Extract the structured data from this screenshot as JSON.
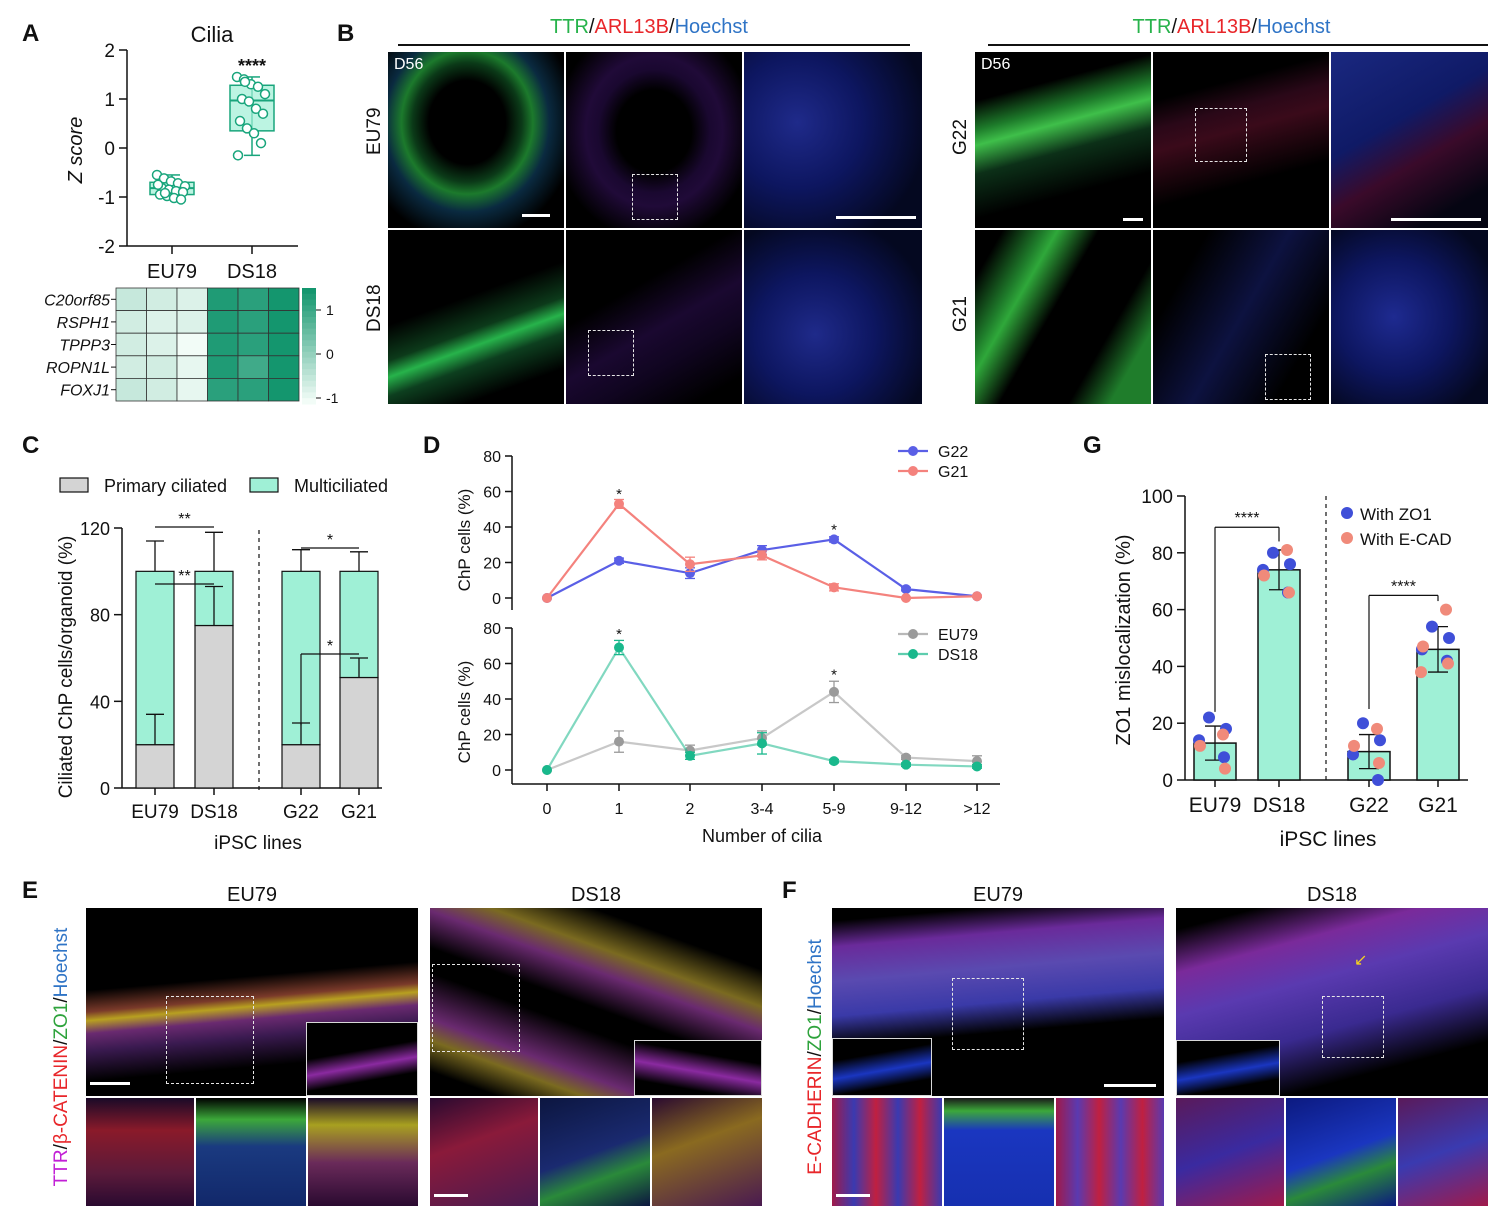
{
  "panels": {
    "A": "A",
    "B": "B",
    "C": "C",
    "D": "D",
    "E": "E",
    "F": "F",
    "G": "G"
  },
  "colors": {
    "mint": "#9ff0d6",
    "mint_stroke": "#19a57c",
    "green_dark": "#14996f",
    "grey_bar": "#d4d4d4",
    "blue_line": "#5a5fe6",
    "salmon_line": "#f4827d",
    "grey_line": "#9a9a9a",
    "green_line": "#19b88c",
    "ttr": "#27b34b",
    "arl13b": "#e8262a",
    "hoechst": "#2f74c6",
    "magenta": "#c21fd6",
    "zo1_green": "#2ea33c"
  },
  "panelA": {
    "title": "Cilia",
    "ylabel": "Z score",
    "categories": [
      "EU79",
      "DS18"
    ],
    "yticks": [
      "2",
      "1",
      "0",
      "-1",
      "-2"
    ],
    "signif": "****",
    "heatmap_rows": [
      "C20orf85",
      "RSPH1",
      "TPPP3",
      "ROPN1L",
      "FOXJ1"
    ],
    "colorbar_ticks": [
      "1",
      "0",
      "-1"
    ]
  },
  "panelB": {
    "title_left": {
      "a": "TTR",
      "s1": "/",
      "b": "ARL13B",
      "s2": "/",
      "c": "Hoechst"
    },
    "title_right": {
      "a": "TTR",
      "s1": "/",
      "b": "ARL13B",
      "s2": "/",
      "c": "Hoechst"
    },
    "day": "D56",
    "rows_left": [
      "EU79",
      "DS18"
    ],
    "rows_right": [
      "G22",
      "G21"
    ]
  },
  "panelC": {
    "ylabel": "Ciliated ChP cells/organoid (%)",
    "xlabel": "iPSC lines",
    "legend": [
      "Primary ciliated",
      "Multiciliated"
    ],
    "yticks": [
      "0",
      "40",
      "80",
      "120"
    ],
    "signif": [
      "**",
      "**",
      "*",
      "*"
    ]
  },
  "panelD": {
    "ylabel": "ChP cells (%)",
    "xlabel": "Number of cilia",
    "yticks": [
      "0",
      "20",
      "40",
      "60",
      "80"
    ],
    "signif": "*"
  },
  "panelE": {
    "side_label": {
      "a": "TTR",
      "s1": "/",
      "b": "β-CATENIN",
      "s2": "/",
      "c": "ZO1",
      "s3": "/",
      "d": "Hoechst"
    },
    "titles": [
      "EU79",
      "DS18"
    ]
  },
  "panelF": {
    "side_label": {
      "a": "E-CADHERIN",
      "s1": "/",
      "b": "ZO1",
      "s2": "/",
      "c": "Hoechst"
    },
    "titles": [
      "EU79",
      "DS18"
    ]
  },
  "panelG": {
    "ylabel": "ZO1 mislocalization (%)",
    "xlabel": "iPSC lines",
    "yticks": [
      "0",
      "20",
      "40",
      "60",
      "80",
      "100"
    ],
    "legend": [
      "With ZO1",
      "With E-CAD"
    ],
    "signif": "****"
  },
  "chart_data": [
    {
      "type": "scatter",
      "panel": "A",
      "title": "Cilia",
      "ylabel": "Z score",
      "categories": [
        "EU79",
        "DS18"
      ],
      "ylim": [
        -2,
        2
      ],
      "series": [
        {
          "name": "EU79",
          "values": [
            -0.55,
            -0.62,
            -0.68,
            -0.72,
            -0.78,
            -0.82,
            -0.85,
            -0.88,
            -0.9,
            -0.95,
            -0.98,
            -1.02,
            -1.05,
            -0.75,
            -0.92
          ]
        },
        {
          "name": "DS18",
          "values": [
            1.45,
            1.4,
            1.3,
            1.25,
            1.1,
            1.0,
            0.95,
            0.8,
            0.7,
            0.55,
            0.4,
            0.3,
            0.1,
            -0.15,
            1.35
          ]
        }
      ],
      "box": [
        {
          "min": -1.05,
          "q1": -0.95,
          "median": -0.82,
          "q3": -0.7,
          "max": -0.55
        },
        {
          "min": -0.15,
          "q1": 0.35,
          "median": 0.97,
          "q3": 1.28,
          "max": 1.45
        }
      ],
      "heatmap": {
        "rows": [
          "C20orf85",
          "RSPH1",
          "TPPP3",
          "ROPN1L",
          "FOXJ1"
        ],
        "values": [
          [
            -0.6,
            -0.7,
            -0.8,
            0.9,
            0.8,
            1.1
          ],
          [
            -0.7,
            -0.8,
            -0.8,
            0.9,
            0.8,
            1.1
          ],
          [
            -0.7,
            -0.8,
            -1.0,
            0.9,
            0.8,
            1.1
          ],
          [
            -0.7,
            -0.7,
            -0.9,
            0.9,
            0.6,
            1.1
          ],
          [
            -0.6,
            -0.7,
            -0.9,
            0.8,
            0.8,
            1.1
          ]
        ],
        "range": [
          -1,
          1
        ]
      }
    },
    {
      "type": "bar",
      "panel": "C",
      "categories": [
        "EU79",
        "DS18",
        "G22",
        "G21"
      ],
      "ylim": [
        0,
        120
      ],
      "series": [
        {
          "name": "Primary ciliated",
          "values": [
            20,
            75,
            20,
            51
          ],
          "err": [
            14,
            18,
            10,
            9
          ]
        },
        {
          "name": "Multiciliated",
          "values": [
            80,
            25,
            80,
            49
          ],
          "err": [
            14,
            18,
            10,
            9
          ]
        }
      ]
    },
    {
      "type": "line",
      "panel": "D",
      "x": [
        "0",
        "1",
        "2",
        "3-4",
        "5-9",
        "9-12",
        ">12"
      ],
      "ylim": [
        0,
        80
      ],
      "series": [
        {
          "name": "G22",
          "values": [
            0,
            21,
            14,
            27,
            33,
            5,
            1
          ],
          "err": [
            0,
            1.5,
            3,
            2.5,
            1.5,
            1,
            0.5
          ]
        },
        {
          "name": "G21",
          "values": [
            0,
            53,
            19,
            24,
            6,
            0,
            1
          ],
          "err": [
            0,
            2.5,
            4,
            2.5,
            2,
            0.5,
            0.5
          ]
        }
      ]
    },
    {
      "type": "line",
      "panel": "D",
      "x": [
        "0",
        "1",
        "2",
        "3-4",
        "5-9",
        "9-12",
        ">12"
      ],
      "ylim": [
        0,
        80
      ],
      "series": [
        {
          "name": "EU79",
          "values": [
            0,
            16,
            11,
            18,
            44,
            7,
            5
          ],
          "err": [
            0,
            6,
            3,
            4,
            6,
            1,
            3
          ]
        },
        {
          "name": "DS18",
          "values": [
            0,
            69,
            8,
            15,
            5,
            3,
            2
          ],
          "err": [
            0,
            4,
            2,
            6,
            1,
            1,
            1
          ]
        }
      ]
    },
    {
      "type": "bar",
      "panel": "G",
      "categories": [
        "EU79",
        "DS18",
        "G22",
        "G21"
      ],
      "ylim": [
        0,
        100
      ],
      "values": [
        13,
        74,
        10,
        46
      ],
      "err": [
        6,
        7,
        6,
        8
      ],
      "points": {
        "With ZO1": [
          [
            22,
            18,
            14,
            8
          ],
          [
            80,
            76,
            74,
            66
          ],
          [
            20,
            14,
            9,
            0
          ],
          [
            54,
            50,
            46,
            42
          ]
        ],
        "With E-CAD": [
          [
            16,
            12,
            4
          ],
          [
            81,
            72,
            66
          ],
          [
            18,
            12,
            6
          ],
          [
            60,
            47,
            41,
            38
          ]
        ]
      }
    }
  ]
}
